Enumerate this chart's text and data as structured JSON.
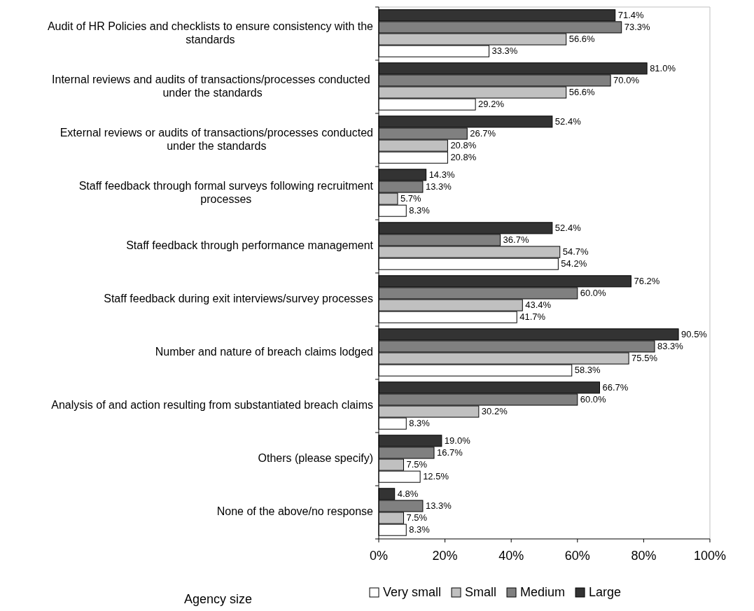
{
  "chart_data": {
    "type": "bar",
    "orientation": "horizontal",
    "categories": [
      "Audit of HR Policies and checklists to ensure consistency with the standards",
      "Internal reviews and audits of transactions/processes conducted  under the standards",
      "External reviews or audits of transactions/processes conducted under the standards",
      "Staff feedback through formal surveys following recruitment processes",
      "Staff feedback through performance management",
      "Staff feedback during exit interviews/survey processes",
      "Number and nature of breach claims lodged",
      "Analysis of and action resulting from substantiated breach claims",
      "Others (please specify)",
      "None of the above/no response"
    ],
    "series": [
      {
        "name": "Very small",
        "color": "#ffffff",
        "values": [
          33.3,
          29.2,
          20.8,
          8.3,
          54.2,
          41.7,
          58.3,
          8.3,
          12.5,
          8.3
        ],
        "value_labels": [
          "33.3%",
          "29.2%",
          "20.8%",
          "8.3%",
          "54.2%",
          "41.7%",
          "58.3%",
          "8.3%",
          "12.5%",
          "8.3%"
        ]
      },
      {
        "name": "Small",
        "color": "#c0c0c0",
        "values": [
          56.6,
          56.6,
          20.8,
          5.7,
          54.7,
          43.4,
          75.5,
          30.2,
          7.5,
          7.5
        ],
        "value_labels": [
          "56.6%",
          "56.6%",
          "20.8%",
          "5.7%",
          "54.7%",
          "43.4%",
          "75.5%",
          "30.2%",
          "7.5%",
          "7.5%"
        ]
      },
      {
        "name": "Medium",
        "color": "#808080",
        "values": [
          73.3,
          70.0,
          26.7,
          13.3,
          36.7,
          60.0,
          83.3,
          60.0,
          16.7,
          13.3
        ],
        "value_labels": [
          "73.3%",
          "70.0%",
          "26.7%",
          "13.3%",
          "36.7%",
          "60.0%",
          "83.3%",
          "60.0%",
          "16.7%",
          "13.3%"
        ]
      },
      {
        "name": "Large",
        "color": "#333333",
        "values": [
          71.4,
          81.0,
          52.4,
          14.3,
          52.4,
          76.2,
          90.5,
          66.7,
          19.0,
          4.8
        ],
        "value_labels": [
          "71.4%",
          "81.0%",
          "52.4%",
          "14.3%",
          "52.4%",
          "76.2%",
          "90.5%",
          "66.7%",
          "19.0%",
          "4.8%"
        ]
      }
    ],
    "xlim": [
      0,
      100
    ],
    "xticks": [
      {
        "value": 0,
        "label": "0%"
      },
      {
        "value": 20,
        "label": "20%"
      },
      {
        "value": 40,
        "label": "40%"
      },
      {
        "value": 60,
        "label": "60%"
      },
      {
        "value": 80,
        "label": "80%"
      },
      {
        "value": 100,
        "label": "100%"
      }
    ],
    "legend": "bottom",
    "legend_title": "Agency size",
    "grid": false
  }
}
